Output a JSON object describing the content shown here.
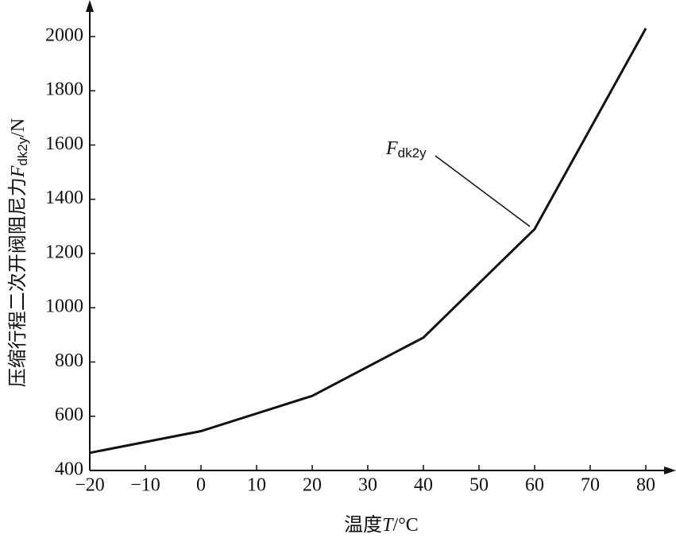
{
  "chart_data": {
    "type": "line",
    "x_label": {
      "text": "温度",
      "symbol": "T",
      "unit": "/°C"
    },
    "y_label": {
      "text": "压缩行程二次开阀阻尼力",
      "symbol": "F",
      "subscript": "dk2y",
      "unit": "/N"
    },
    "annotation": {
      "symbol": "F",
      "subscript": "dk2y"
    },
    "x": [
      -20,
      0,
      20,
      40,
      60,
      80
    ],
    "series": [
      {
        "color": "#111111",
        "values": [
          465,
          545,
          675,
          890,
          1290,
          2030
        ]
      }
    ],
    "xlim": [
      -20,
      85
    ],
    "xticks": [
      {
        "value": -20,
        "label": "−20"
      },
      {
        "value": -10,
        "label": "−10"
      },
      0,
      10,
      20,
      30,
      40,
      50,
      60,
      70,
      80
    ],
    "ylim": [
      400,
      2120
    ],
    "yticks": [
      400,
      600,
      800,
      1000,
      1200,
      1400,
      1600,
      1800,
      2000
    ],
    "grid": false
  }
}
